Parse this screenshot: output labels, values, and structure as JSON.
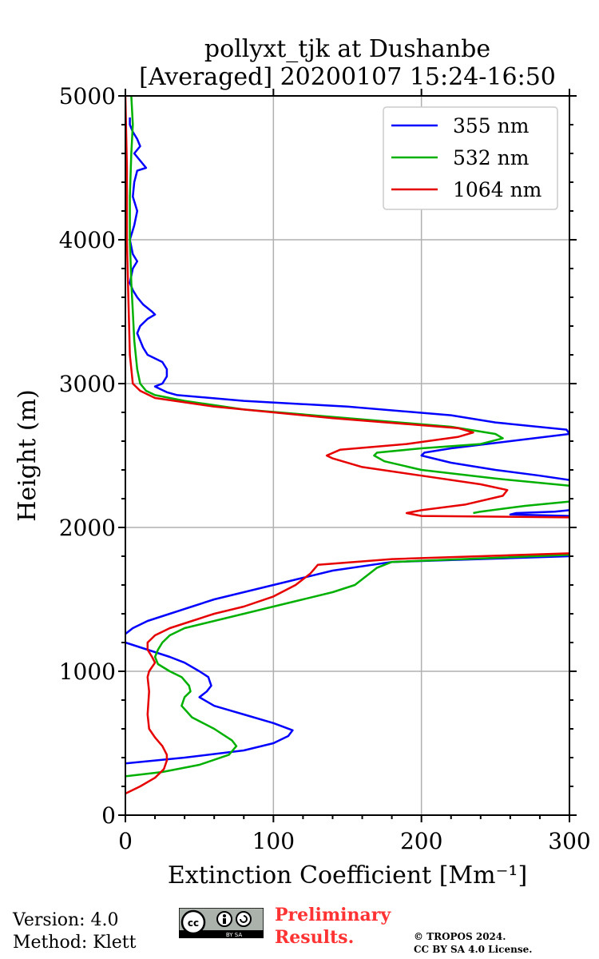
{
  "chart_data": {
    "type": "line",
    "title": "pollyxt_tjk at Dushanbe",
    "subtitle": "[Averaged] 20200107 15:24-16:50",
    "xlabel": "Extinction Coefficient [Mm⁻¹]",
    "ylabel": "Height (m)",
    "xlim": [
      0,
      300
    ],
    "ylim": [
      0,
      5000
    ],
    "xticks": [
      0,
      100,
      200,
      300
    ],
    "yticks": [
      0,
      1000,
      2000,
      3000,
      4000,
      5000
    ],
    "grid": true,
    "legend_position": "top-right",
    "series": [
      {
        "name": "355 nm",
        "color": "#0000ff",
        "points": [
          [
            0,
            360
          ],
          [
            40,
            400
          ],
          [
            80,
            450
          ],
          [
            100,
            500
          ],
          [
            110,
            550
          ],
          [
            113,
            590
          ],
          [
            100,
            640
          ],
          [
            80,
            700
          ],
          [
            60,
            760
          ],
          [
            50,
            820
          ],
          [
            55,
            860
          ],
          [
            58,
            900
          ],
          [
            56,
            960
          ],
          [
            50,
            1000
          ],
          [
            40,
            1060
          ],
          [
            30,
            1100
          ],
          [
            15,
            1150
          ],
          [
            0,
            1200
          ],
          [
            null,
            null
          ],
          [
            0,
            1260
          ],
          [
            5,
            1300
          ],
          [
            15,
            1350
          ],
          [
            30,
            1400
          ],
          [
            45,
            1450
          ],
          [
            60,
            1500
          ],
          [
            80,
            1550
          ],
          [
            100,
            1600
          ],
          [
            120,
            1650
          ],
          [
            140,
            1700
          ],
          [
            180,
            1760
          ],
          [
            300,
            1800
          ],
          [
            null,
            null
          ],
          [
            300,
            2080
          ],
          [
            260,
            2090
          ],
          [
            264,
            2100
          ],
          [
            290,
            2110
          ],
          [
            300,
            2120
          ],
          [
            null,
            null
          ],
          [
            300,
            2330
          ],
          [
            280,
            2360
          ],
          [
            250,
            2400
          ],
          [
            220,
            2450
          ],
          [
            200,
            2500
          ],
          [
            202,
            2520
          ],
          [
            220,
            2550
          ],
          [
            260,
            2600
          ],
          [
            300,
            2650
          ],
          [
            298,
            2680
          ],
          [
            250,
            2730
          ],
          [
            220,
            2780
          ],
          [
            150,
            2840
          ],
          [
            80,
            2880
          ],
          [
            35,
            2920
          ],
          [
            28,
            2940
          ],
          [
            24,
            2960
          ],
          [
            20,
            2980
          ],
          [
            25,
            3000
          ],
          [
            28,
            3050
          ],
          [
            28,
            3100
          ],
          [
            25,
            3150
          ],
          [
            15,
            3200
          ],
          [
            12,
            3250
          ],
          [
            10,
            3300
          ],
          [
            8,
            3350
          ],
          [
            10,
            3400
          ],
          [
            15,
            3450
          ],
          [
            20,
            3480
          ],
          [
            18,
            3500
          ],
          [
            12,
            3550
          ],
          [
            8,
            3600
          ],
          [
            5,
            3650
          ],
          [
            3,
            3700
          ],
          [
            5,
            3800
          ],
          [
            8,
            3850
          ],
          [
            5,
            3900
          ],
          [
            3,
            4000
          ],
          [
            6,
            4100
          ],
          [
            8,
            4200
          ],
          [
            5,
            4300
          ],
          [
            6,
            4400
          ],
          [
            8,
            4480
          ],
          [
            14,
            4500
          ],
          [
            10,
            4550
          ],
          [
            6,
            4600
          ],
          [
            10,
            4650
          ],
          [
            8,
            4700
          ],
          [
            5,
            4750
          ],
          [
            3,
            4800
          ],
          [
            3,
            4850
          ]
        ]
      },
      {
        "name": "532 nm",
        "color": "#00b000",
        "points": [
          [
            0,
            270
          ],
          [
            25,
            300
          ],
          [
            50,
            350
          ],
          [
            70,
            420
          ],
          [
            75,
            480
          ],
          [
            72,
            520
          ],
          [
            60,
            600
          ],
          [
            45,
            680
          ],
          [
            38,
            760
          ],
          [
            40,
            820
          ],
          [
            44,
            860
          ],
          [
            43,
            900
          ],
          [
            38,
            960
          ],
          [
            30,
            1000
          ],
          [
            22,
            1050
          ],
          [
            20,
            1100
          ],
          [
            22,
            1150
          ],
          [
            25,
            1200
          ],
          [
            30,
            1250
          ],
          [
            40,
            1300
          ],
          [
            60,
            1350
          ],
          [
            80,
            1400
          ],
          [
            100,
            1450
          ],
          [
            120,
            1500
          ],
          [
            140,
            1550
          ],
          [
            155,
            1600
          ],
          [
            165,
            1680
          ],
          [
            170,
            1720
          ],
          [
            180,
            1760
          ],
          [
            300,
            1810
          ],
          [
            null,
            null
          ],
          [
            235,
            2100
          ],
          [
            240,
            2110
          ],
          [
            270,
            2150
          ],
          [
            300,
            2180
          ],
          [
            null,
            null
          ],
          [
            300,
            2290
          ],
          [
            250,
            2340
          ],
          [
            200,
            2400
          ],
          [
            175,
            2460
          ],
          [
            168,
            2500
          ],
          [
            170,
            2520
          ],
          [
            200,
            2550
          ],
          [
            240,
            2580
          ],
          [
            255,
            2620
          ],
          [
            250,
            2650
          ],
          [
            220,
            2700
          ],
          [
            150,
            2760
          ],
          [
            80,
            2820
          ],
          [
            40,
            2880
          ],
          [
            20,
            2920
          ],
          [
            14,
            2950
          ],
          [
            10,
            3000
          ],
          [
            8,
            3100
          ],
          [
            6,
            3300
          ],
          [
            5,
            3500
          ],
          [
            4,
            3700
          ],
          [
            3,
            4000
          ],
          [
            3,
            4300
          ],
          [
            4,
            4600
          ],
          [
            5,
            4800
          ],
          [
            4,
            5000
          ]
        ]
      },
      {
        "name": "1064 nm",
        "color": "#e60000",
        "points": [
          [
            0,
            150
          ],
          [
            10,
            200
          ],
          [
            20,
            260
          ],
          [
            26,
            320
          ],
          [
            28,
            380
          ],
          [
            28,
            420
          ],
          [
            25,
            480
          ],
          [
            20,
            540
          ],
          [
            16,
            600
          ],
          [
            15,
            700
          ],
          [
            16,
            860
          ],
          [
            15,
            960
          ],
          [
            16,
            1000
          ],
          [
            20,
            1060
          ],
          [
            18,
            1100
          ],
          [
            15,
            1150
          ],
          [
            15,
            1200
          ],
          [
            20,
            1250
          ],
          [
            30,
            1300
          ],
          [
            45,
            1350
          ],
          [
            60,
            1400
          ],
          [
            80,
            1450
          ],
          [
            100,
            1520
          ],
          [
            115,
            1600
          ],
          [
            125,
            1680
          ],
          [
            130,
            1740
          ],
          [
            180,
            1780
          ],
          [
            300,
            1820
          ],
          [
            null,
            null
          ],
          [
            300,
            2070
          ],
          [
            200,
            2080
          ],
          [
            190,
            2100
          ],
          [
            200,
            2120
          ],
          [
            230,
            2160
          ],
          [
            255,
            2220
          ],
          [
            258,
            2260
          ],
          [
            240,
            2300
          ],
          [
            200,
            2360
          ],
          [
            160,
            2420
          ],
          [
            140,
            2480
          ],
          [
            136,
            2500
          ],
          [
            145,
            2540
          ],
          [
            190,
            2580
          ],
          [
            225,
            2630
          ],
          [
            235,
            2660
          ],
          [
            225,
            2690
          ],
          [
            140,
            2760
          ],
          [
            60,
            2840
          ],
          [
            20,
            2900
          ],
          [
            10,
            2950
          ],
          [
            5,
            3000
          ],
          [
            3,
            3200
          ],
          [
            2,
            3600
          ],
          [
            1,
            4000
          ],
          [
            1,
            4500
          ],
          [
            0,
            5000
          ]
        ]
      }
    ]
  },
  "footer": {
    "version": "Version: 4.0",
    "method": "Method: Klett",
    "license_badge": "BY SA",
    "preliminary_line1": "Preliminary",
    "preliminary_line2": "Results.",
    "copyright_line1": "© TROPOS 2024.",
    "copyright_line2": "CC BY SA 4.0 License."
  }
}
